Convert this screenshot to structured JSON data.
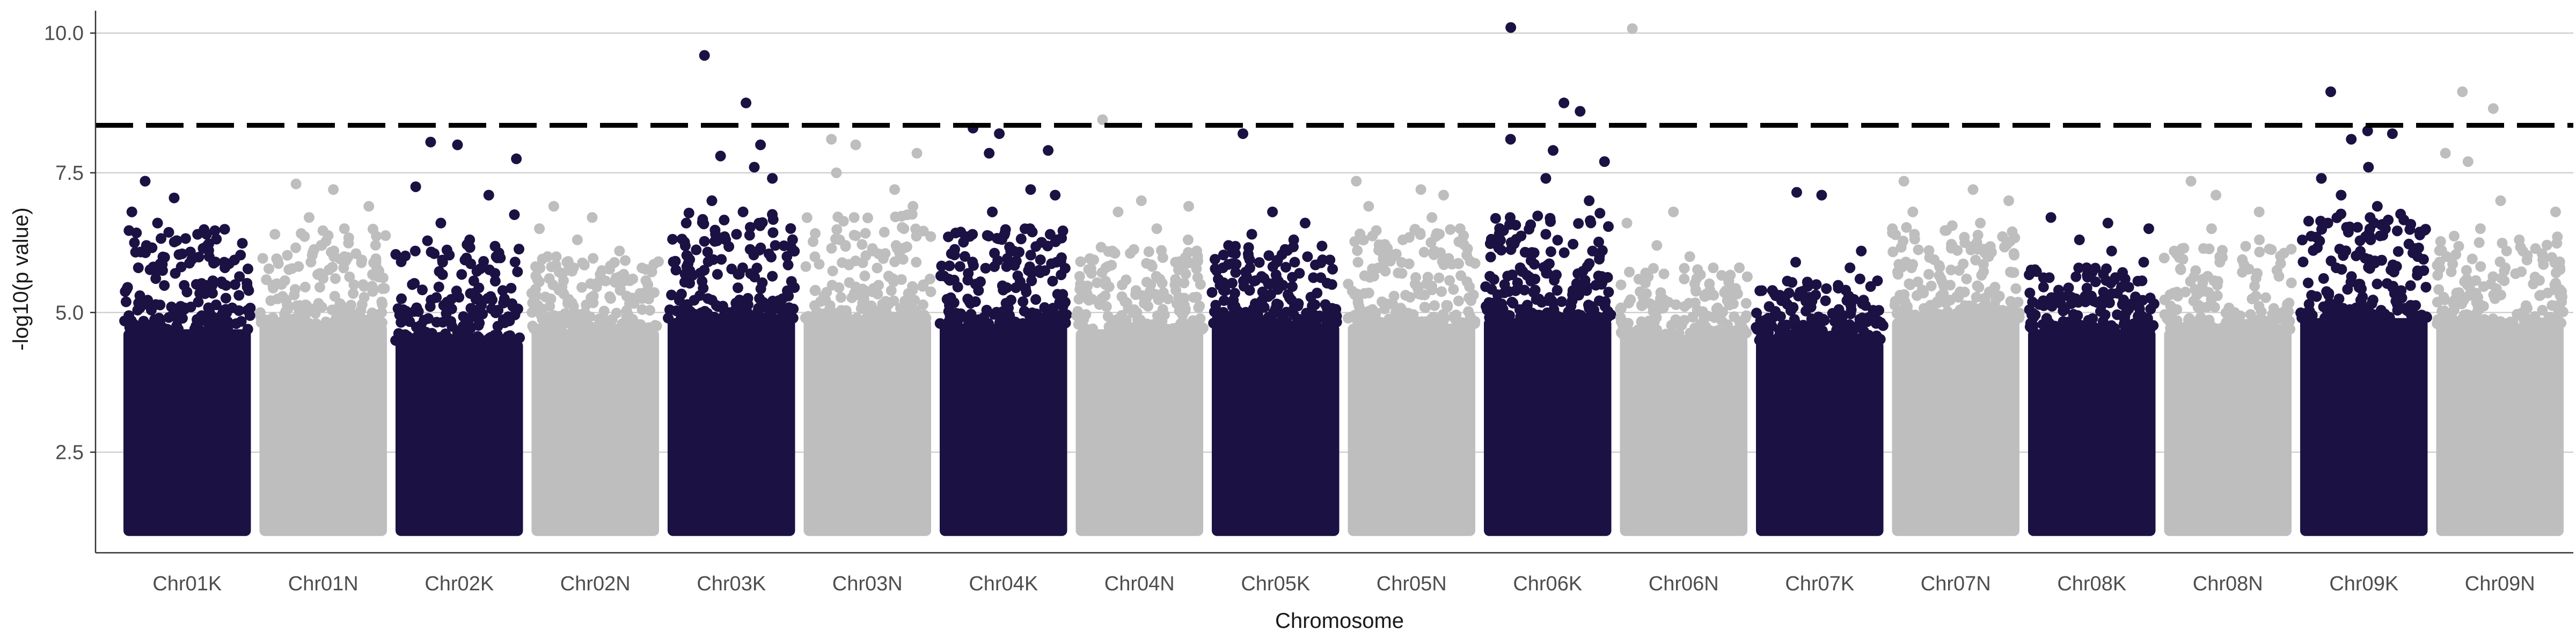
{
  "chart_data": {
    "type": "scatter",
    "subtype": "manhattan",
    "title": "",
    "xlabel": "Chromosome",
    "ylabel": "-log10(p value)",
    "ylim": [
      0.7,
      10.4
    ],
    "y_ticks": [
      "2.5",
      "5.0",
      "7.5",
      "10.0"
    ],
    "grid": "horizontal major lines",
    "threshold": {
      "value": 8.35,
      "style": "dashed",
      "color": "#000000"
    },
    "colors": {
      "odd": "#1c1143",
      "even": "#bebebe"
    },
    "chromosomes": [
      {
        "name": "Chr01K",
        "color": "odd",
        "baseline_max": 4.7,
        "band_top": 6.5,
        "top_hits": [
          7.35,
          7.05,
          6.8,
          6.6,
          6.4,
          6.2,
          6.05,
          5.9,
          5.8,
          5.7,
          5.5,
          5.3
        ]
      },
      {
        "name": "Chr01N",
        "color": "even",
        "baseline_max": 4.8,
        "band_top": 6.5,
        "top_hits": [
          7.3,
          7.2,
          6.9,
          6.7,
          6.5,
          6.4,
          6.2,
          6.0,
          5.9,
          5.7,
          5.5
        ]
      },
      {
        "name": "Chr02K",
        "color": "odd",
        "baseline_max": 4.5,
        "band_top": 6.3,
        "top_hits": [
          8.05,
          8.0,
          7.75,
          7.25,
          7.1,
          6.75,
          6.6,
          6.3,
          6.1,
          5.9,
          5.7,
          5.5
        ]
      },
      {
        "name": "Chr02N",
        "color": "even",
        "baseline_max": 4.7,
        "band_top": 6.0,
        "top_hits": [
          6.9,
          6.7,
          6.5,
          6.3,
          6.1,
          6.0,
          5.8,
          5.6,
          5.4
        ]
      },
      {
        "name": "Chr03K",
        "color": "odd",
        "baseline_max": 4.9,
        "band_top": 6.8,
        "top_hits": [
          9.6,
          8.75,
          8.0,
          7.8,
          7.6,
          7.4,
          7.0,
          6.8,
          6.6,
          6.4,
          6.2,
          6.0,
          5.8
        ]
      },
      {
        "name": "Chr03N",
        "color": "even",
        "baseline_max": 4.9,
        "band_top": 6.8,
        "top_hits": [
          8.1,
          8.0,
          7.85,
          7.5,
          7.2,
          6.9,
          6.7,
          6.5,
          6.3,
          6.1,
          5.9
        ]
      },
      {
        "name": "Chr04K",
        "color": "odd",
        "baseline_max": 4.8,
        "band_top": 6.5,
        "top_hits": [
          8.3,
          8.2,
          7.9,
          7.85,
          7.2,
          7.1,
          6.8,
          6.5,
          6.3,
          6.1,
          5.9,
          5.7
        ]
      },
      {
        "name": "Chr04N",
        "color": "even",
        "baseline_max": 4.7,
        "band_top": 6.2,
        "top_hits": [
          8.45,
          7.0,
          6.9,
          6.8,
          6.5,
          6.3,
          6.1,
          5.9,
          5.7,
          5.5
        ]
      },
      {
        "name": "Chr05K",
        "color": "odd",
        "baseline_max": 4.8,
        "band_top": 6.2,
        "top_hits": [
          8.2,
          6.8,
          6.6,
          6.4,
          6.3,
          6.2,
          6.0,
          5.9,
          5.8,
          5.6
        ]
      },
      {
        "name": "Chr05N",
        "color": "even",
        "baseline_max": 4.8,
        "band_top": 6.5,
        "top_hits": [
          7.35,
          7.2,
          7.1,
          6.9,
          6.7,
          6.5,
          6.3,
          6.1,
          5.9,
          5.7
        ]
      },
      {
        "name": "Chr06K",
        "color": "odd",
        "baseline_max": 4.9,
        "band_top": 6.8,
        "top_hits": [
          10.1,
          8.75,
          8.6,
          8.1,
          7.9,
          7.7,
          7.4,
          7.0,
          6.7,
          6.4,
          6.1,
          5.8
        ]
      },
      {
        "name": "Chr06N",
        "color": "even",
        "baseline_max": 4.6,
        "band_top": 5.8,
        "top_hits": [
          10.08,
          6.8,
          6.6,
          6.2,
          6.0,
          5.8,
          5.6,
          5.4
        ]
      },
      {
        "name": "Chr07K",
        "color": "odd",
        "baseline_max": 4.5,
        "band_top": 5.6,
        "top_hits": [
          7.15,
          7.1,
          6.1,
          5.9,
          5.8,
          5.6,
          5.5,
          5.4,
          5.3
        ]
      },
      {
        "name": "Chr07N",
        "color": "even",
        "baseline_max": 4.9,
        "band_top": 6.6,
        "top_hits": [
          7.35,
          7.2,
          7.0,
          6.8,
          6.6,
          6.4,
          6.2,
          6.0,
          5.8
        ]
      },
      {
        "name": "Chr08K",
        "color": "odd",
        "baseline_max": 4.7,
        "band_top": 5.8,
        "top_hits": [
          6.7,
          6.6,
          6.5,
          6.3,
          6.1,
          5.9,
          5.8,
          5.6,
          5.4
        ]
      },
      {
        "name": "Chr08N",
        "color": "even",
        "baseline_max": 4.7,
        "band_top": 6.2,
        "top_hits": [
          7.35,
          7.1,
          6.8,
          6.5,
          6.3,
          6.1,
          5.9,
          5.7
        ]
      },
      {
        "name": "Chr09K",
        "color": "odd",
        "baseline_max": 4.9,
        "band_top": 6.8,
        "top_hits": [
          8.95,
          8.25,
          8.2,
          8.1,
          7.6,
          7.4,
          7.1,
          6.9,
          6.6,
          6.3,
          6.0,
          5.8
        ]
      },
      {
        "name": "Chr09N",
        "color": "even",
        "baseline_max": 4.8,
        "band_top": 6.4,
        "top_hits": [
          8.95,
          8.65,
          7.85,
          7.7,
          7.0,
          6.8,
          6.5,
          6.3,
          6.0,
          5.8
        ]
      }
    ]
  }
}
